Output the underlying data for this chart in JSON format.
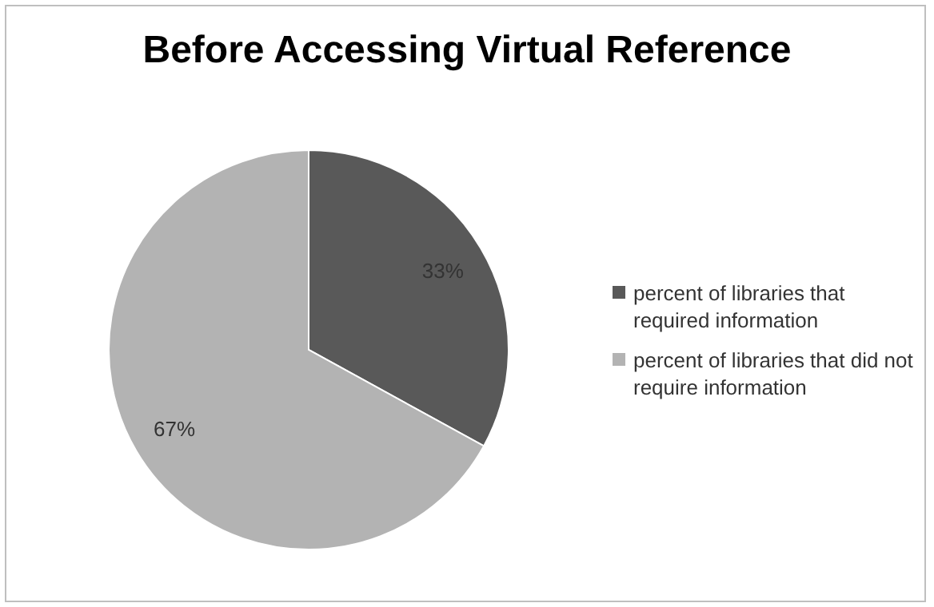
{
  "chart_data": {
    "type": "pie",
    "title": "Before Accessing Virtual Reference",
    "categories": [
      "percent of libraries that required information",
      "percent of libraries that did not require information"
    ],
    "values": [
      33,
      67
    ],
    "colors": [
      "#595959",
      "#b3b3b3"
    ],
    "value_labels": [
      "33%",
      "67%"
    ],
    "legend": "right"
  }
}
